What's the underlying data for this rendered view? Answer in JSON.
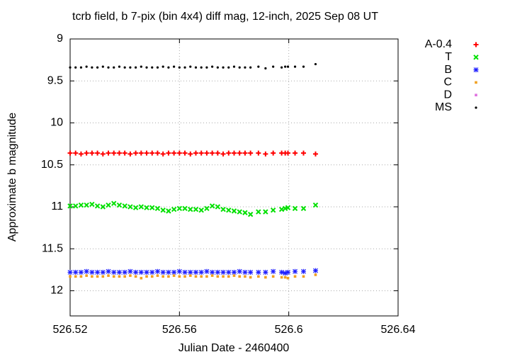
{
  "chart_data": {
    "type": "scatter",
    "title": "tcrb field, b 7-pix (bin 4x4) diff mag, 12-inch, 2025 Sep 08 UT",
    "x_label": "Julian Date - 2460400",
    "y_label": "Approximate b magnitude",
    "xlim": [
      526.52,
      526.64
    ],
    "xticks": [
      526.52,
      526.56,
      526.6,
      526.64
    ],
    "ylim": [
      9,
      12.3
    ],
    "yticks": [
      9,
      9.5,
      10,
      10.5,
      11,
      11.5,
      12
    ],
    "y_reversed": true,
    "grid": true,
    "legend": "outside-right",
    "x": [
      526.52,
      526.522,
      526.524,
      526.526,
      526.528,
      526.53,
      526.532,
      526.534,
      526.536,
      526.538,
      526.54,
      526.542,
      526.544,
      526.546,
      526.548,
      526.55,
      526.552,
      526.554,
      526.556,
      526.558,
      526.56,
      526.562,
      526.564,
      526.566,
      526.568,
      526.57,
      526.572,
      526.574,
      526.576,
      526.578,
      526.58,
      526.582,
      526.584,
      526.586,
      526.5889,
      526.5915,
      526.5943,
      526.5974,
      526.5987,
      526.5997,
      526.6023,
      526.6054,
      526.6098
    ],
    "series": [
      {
        "name": "A-0.4",
        "color": "#ff0000",
        "marker": "plus",
        "values": [
          10.36,
          10.36,
          10.37,
          10.36,
          10.36,
          10.36,
          10.37,
          10.36,
          10.36,
          10.36,
          10.36,
          10.37,
          10.36,
          10.36,
          10.36,
          10.36,
          10.36,
          10.37,
          10.36,
          10.36,
          10.36,
          10.36,
          10.37,
          10.36,
          10.36,
          10.36,
          10.36,
          10.36,
          10.37,
          10.36,
          10.36,
          10.36,
          10.36,
          10.36,
          10.36,
          10.37,
          10.36,
          10.36,
          10.36,
          10.36,
          10.36,
          10.36,
          10.37
        ]
      },
      {
        "name": "T",
        "color": "#00e000",
        "marker": "cross",
        "values": [
          10.99,
          10.99,
          10.98,
          10.98,
          10.97,
          10.99,
          11.0,
          10.98,
          10.96,
          10.98,
          10.99,
          11.0,
          11.01,
          11.0,
          11.01,
          11.01,
          11.02,
          11.04,
          11.05,
          11.03,
          11.02,
          11.02,
          11.03,
          11.03,
          11.04,
          11.02,
          10.99,
          11.0,
          11.03,
          11.04,
          11.05,
          11.06,
          11.07,
          11.09,
          11.06,
          11.06,
          11.04,
          11.03,
          11.02,
          11.01,
          11.02,
          11.02,
          10.98
        ]
      },
      {
        "name": "B",
        "color": "#2020ff",
        "marker": "star",
        "values": [
          11.78,
          11.78,
          11.78,
          11.77,
          11.78,
          11.78,
          11.78,
          11.77,
          11.78,
          11.78,
          11.78,
          11.77,
          11.78,
          11.78,
          11.78,
          11.78,
          11.77,
          11.78,
          11.78,
          11.78,
          11.77,
          11.78,
          11.78,
          11.78,
          11.78,
          11.77,
          11.78,
          11.78,
          11.78,
          11.78,
          11.78,
          11.77,
          11.78,
          11.78,
          11.78,
          11.78,
          11.77,
          11.78,
          11.79,
          11.78,
          11.77,
          11.77,
          11.76
        ]
      },
      {
        "name": "C",
        "color": "#f0a020",
        "marker": "square",
        "values": [
          11.83,
          11.83,
          11.83,
          11.82,
          11.83,
          11.83,
          11.83,
          11.82,
          11.83,
          11.83,
          11.83,
          11.82,
          11.83,
          11.85,
          11.83,
          11.83,
          11.82,
          11.83,
          11.83,
          11.82,
          11.83,
          11.83,
          11.82,
          11.83,
          11.83,
          11.83,
          11.82,
          11.83,
          11.83,
          11.83,
          11.82,
          11.83,
          11.83,
          11.84,
          11.83,
          11.84,
          11.83,
          11.84,
          11.84,
          11.85,
          11.83,
          11.83,
          11.81
        ]
      },
      {
        "name": "D",
        "color": "#e070e0",
        "marker": "square",
        "values": [
          null,
          null,
          null,
          null,
          null,
          null,
          null,
          null,
          null,
          null,
          null,
          null,
          null,
          null,
          null,
          null,
          null,
          null,
          null,
          null,
          null,
          null,
          null,
          null,
          null,
          null,
          null,
          null,
          null,
          null,
          null,
          null,
          null,
          null,
          null,
          null,
          null,
          null,
          null,
          null,
          null,
          null,
          null
        ]
      },
      {
        "name": "MS",
        "color": "#000000",
        "marker": "dot",
        "values": [
          9.34,
          9.34,
          9.34,
          9.33,
          9.34,
          9.34,
          9.33,
          9.34,
          9.34,
          9.33,
          9.34,
          9.34,
          9.34,
          9.33,
          9.34,
          9.34,
          9.34,
          9.33,
          9.34,
          9.33,
          9.34,
          9.34,
          9.33,
          9.34,
          9.34,
          9.34,
          9.33,
          9.34,
          9.34,
          9.34,
          9.33,
          9.34,
          9.34,
          9.34,
          9.33,
          9.35,
          9.33,
          9.34,
          9.33,
          9.33,
          9.33,
          9.33,
          9.3
        ]
      }
    ]
  }
}
